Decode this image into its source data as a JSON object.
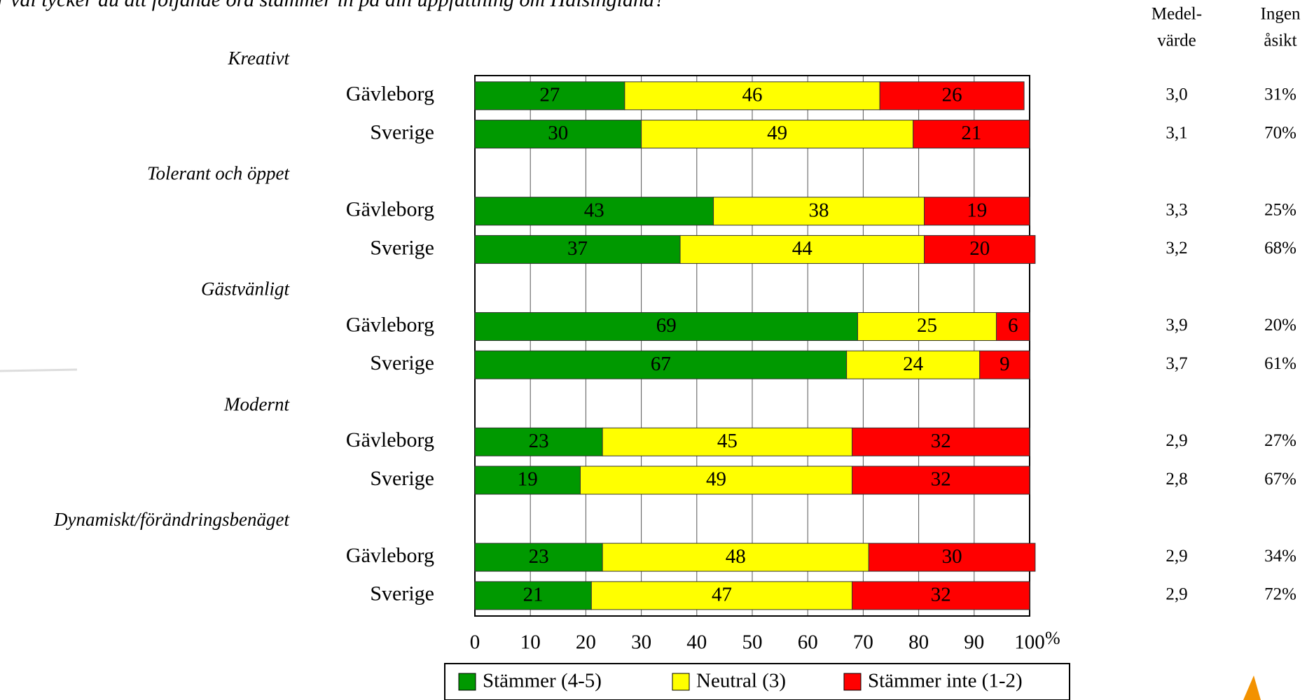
{
  "chart_data": {
    "type": "bar",
    "orientation": "horizontal",
    "stacked": true,
    "title": "r väl tycker du att följande ord stämmer in på din uppfattning om Hälsingland?",
    "groups": [
      "Kreativt",
      "Tolerant och öppet",
      "Gästvänligt",
      "Modernt",
      "Dynamiskt/förändringsbenäget"
    ],
    "categories": [
      "Gävleborg",
      "Sverige",
      "Gävleborg",
      "Sverige",
      "Gävleborg",
      "Sverige",
      "Gävleborg",
      "Sverige",
      "Gävleborg",
      "Sverige"
    ],
    "series": [
      {
        "name": "Stämmer (4-5)",
        "color": "#009900",
        "label_color": "#ffffff",
        "values": [
          27,
          30,
          43,
          37,
          69,
          67,
          23,
          19,
          23,
          21
        ]
      },
      {
        "name": "Neutral (3)",
        "color": "#ffff00",
        "label_color": "#000000",
        "values": [
          46,
          49,
          38,
          44,
          25,
          24,
          45,
          49,
          48,
          47
        ]
      },
      {
        "name": "Stämmer inte (1-2)",
        "color": "#ff0000",
        "label_color": "#ffffff",
        "values": [
          26,
          21,
          19,
          20,
          6,
          9,
          32,
          32,
          30,
          32
        ]
      }
    ],
    "xlim": [
      0,
      100
    ],
    "xticks": [
      0,
      10,
      20,
      30,
      40,
      50,
      60,
      70,
      80,
      90,
      100
    ],
    "x_unit": "%",
    "grid": true,
    "legend": "bottom",
    "columns": [
      {
        "header": [
          "Medel-",
          "värde"
        ],
        "values": [
          "3,0",
          "3,1",
          "3,3",
          "3,2",
          "3,9",
          "3,7",
          "2,9",
          "2,8",
          "2,9",
          "2,9"
        ]
      },
      {
        "header": [
          "Ingen",
          "åsikt"
        ],
        "values": [
          "31%",
          "70%",
          "25%",
          "68%",
          "20%",
          "61%",
          "27%",
          "67%",
          "34%",
          "72%"
        ]
      }
    ]
  }
}
